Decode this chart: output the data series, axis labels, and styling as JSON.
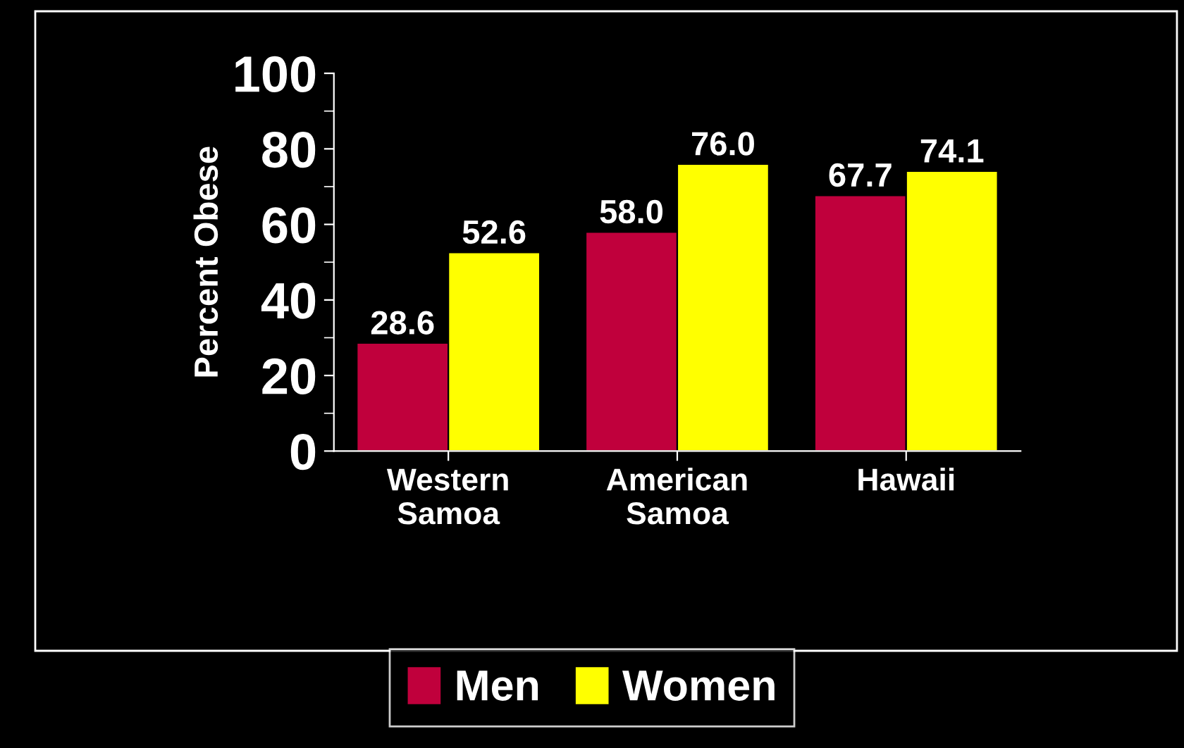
{
  "chart_data": {
    "type": "bar",
    "ylabel": "Percent Obese",
    "categories": [
      "Western\nSamoa",
      "American\nSamoa",
      "Hawaii"
    ],
    "series": [
      {
        "name": "Men",
        "color": "#c0003c",
        "values": [
          28.6,
          58.0,
          67.7
        ],
        "value_labels": [
          "28.6",
          "58.0",
          "67.7"
        ]
      },
      {
        "name": "Women",
        "color": "#ffff00",
        "values": [
          52.6,
          76.0,
          74.1
        ],
        "value_labels": [
          "52.6",
          "76.0",
          "74.1"
        ]
      }
    ],
    "ylim": [
      0,
      100
    ],
    "yticks": [
      0,
      20,
      40,
      60,
      80,
      100
    ],
    "grid": false,
    "legend": "bottom"
  }
}
